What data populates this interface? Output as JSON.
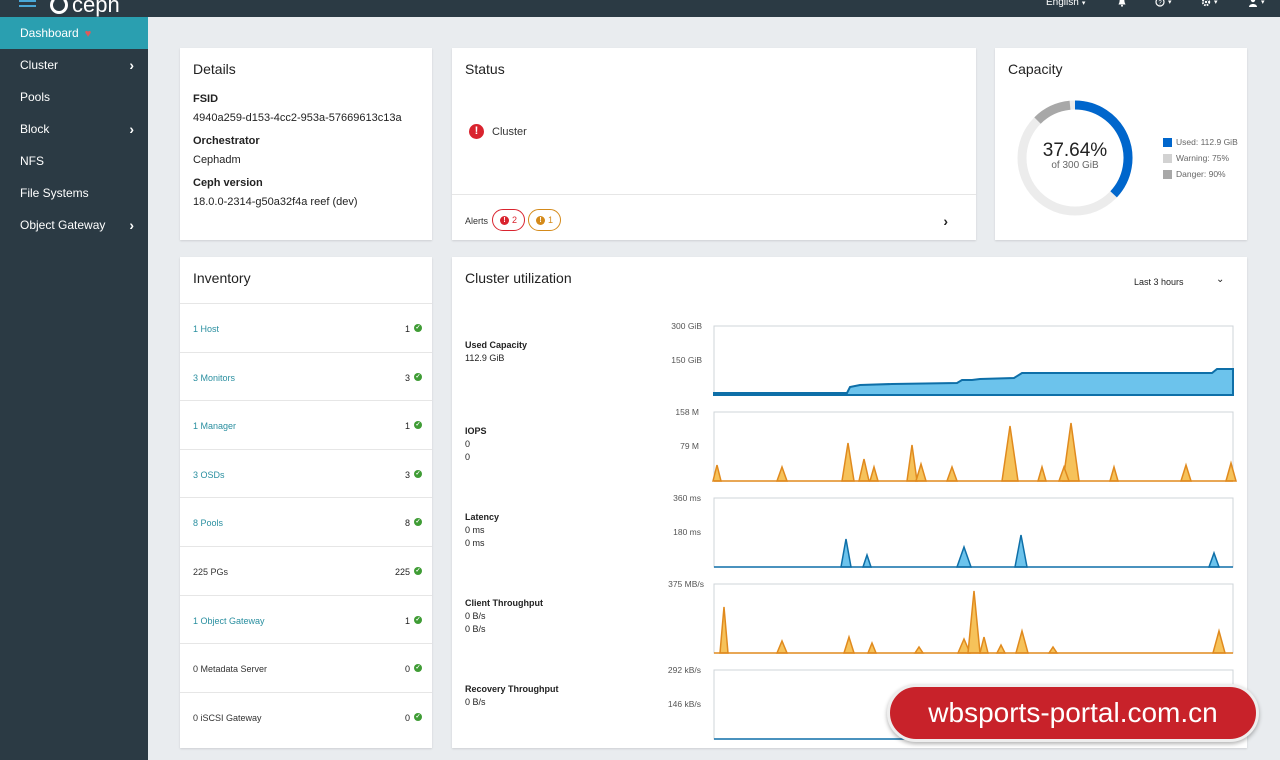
{
  "topbar": {
    "brand": "ceph",
    "language": "English",
    "icons": [
      "hamburger-icon",
      "bell-icon",
      "help-icon",
      "gear-icon",
      "user-icon"
    ]
  },
  "sidebar": {
    "items": [
      {
        "label": "Dashboard",
        "active": true,
        "has_children": false
      },
      {
        "label": "Cluster",
        "has_children": true
      },
      {
        "label": "Pools",
        "has_children": false
      },
      {
        "label": "Block",
        "has_children": true
      },
      {
        "label": "NFS",
        "has_children": false
      },
      {
        "label": "File Systems",
        "has_children": false
      },
      {
        "label": "Object Gateway",
        "has_children": true
      }
    ]
  },
  "details": {
    "title": "Details",
    "fsid_label": "FSID",
    "fsid": "4940a259-d153-4cc2-953a-57669613c13a",
    "orchestrator_label": "Orchestrator",
    "orchestrator": "Cephadm",
    "version_label": "Ceph version",
    "version": "18.0.0-2314-g50a32f4a reef (dev)"
  },
  "status": {
    "title": "Status",
    "cluster_label": "Cluster",
    "health_color": "#d9232e",
    "alerts_label": "Alerts",
    "alerts_danger": "2",
    "alerts_warning": "1"
  },
  "capacity": {
    "title": "Capacity",
    "percent": "37.64%",
    "of_total": "of 300 GiB",
    "used_fraction": 0.3764,
    "legend": [
      {
        "label": "Used: 112.9 GiB",
        "color": "#0066cc"
      },
      {
        "label": "Warning: 75%",
        "color": "#d2d2d2"
      },
      {
        "label": "Danger: 90%",
        "color": "#a8a8a8"
      }
    ]
  },
  "inventory": {
    "title": "Inventory",
    "rows": [
      {
        "label": "1 Host",
        "count": "1",
        "link": true
      },
      {
        "label": "3 Monitors",
        "count": "3",
        "link": true
      },
      {
        "label": "1 Manager",
        "count": "1",
        "link": true
      },
      {
        "label": "3 OSDs",
        "count": "3",
        "link": true
      },
      {
        "label": "8 Pools",
        "count": "8",
        "link": true
      },
      {
        "label": "225 PGs",
        "count": "225",
        "link": false
      },
      {
        "label": "1 Object Gateway",
        "count": "1",
        "link": true
      },
      {
        "label": "0 Metadata Server",
        "count": "0",
        "link": false
      },
      {
        "label": "0 iSCSI Gateway",
        "count": "0",
        "link": false
      }
    ]
  },
  "utilization": {
    "title": "Cluster utilization",
    "time_range": "Last 3 hours",
    "metrics": [
      {
        "name": "Used Capacity",
        "values": [
          "112.9 GiB"
        ],
        "ticks": [
          "300 GiB",
          "150 GiB"
        ]
      },
      {
        "name": "IOPS",
        "values": [
          "0",
          "0"
        ],
        "ticks": [
          "158 M",
          "79 M"
        ]
      },
      {
        "name": "Latency",
        "values": [
          "0 ms",
          "0 ms"
        ],
        "ticks": [
          "360 ms",
          "180 ms"
        ]
      },
      {
        "name": "Client Throughput",
        "values": [
          "0 B/s",
          "0 B/s"
        ],
        "ticks": [
          "375 MB/s"
        ]
      },
      {
        "name": "Recovery Throughput",
        "values": [
          "0 B/s"
        ],
        "ticks": [
          "292 kB/s",
          "146 kB/s"
        ]
      }
    ],
    "colors": {
      "series_a": "#0e6fa8",
      "series_a_fill": "#6cc3ec",
      "series_b": "#e08a1e",
      "series_b_fill": "#f6c25a"
    }
  },
  "watermark": "wbsports-portal.com.cn"
}
